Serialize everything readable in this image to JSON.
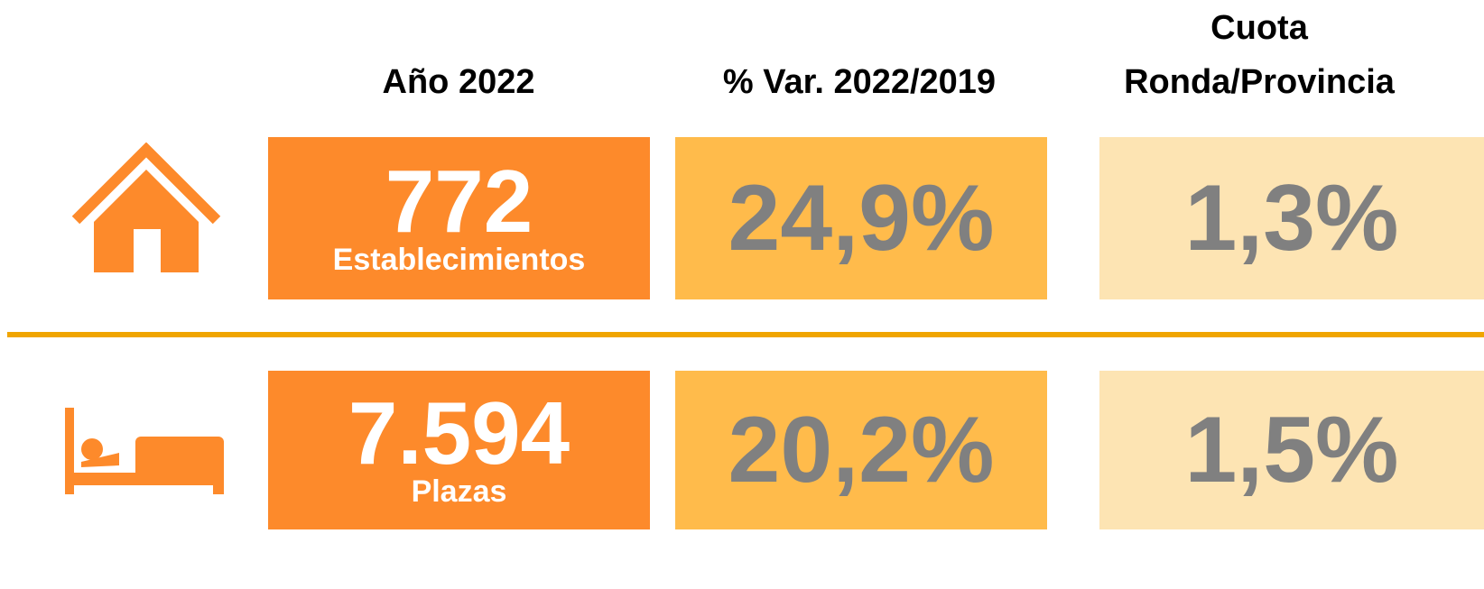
{
  "headers": {
    "year": "Año 2022",
    "variation": "% Var. 2022/2019",
    "share": [
      "Cuota",
      "Ronda/Provincia"
    ]
  },
  "rows": [
    {
      "value": "772",
      "label": "Establecimientos",
      "variation": "24,9%",
      "share": "1,3%"
    },
    {
      "value": "7.594",
      "label": "Plazas",
      "variation": "20,2%",
      "share": "1,5%"
    }
  ]
}
